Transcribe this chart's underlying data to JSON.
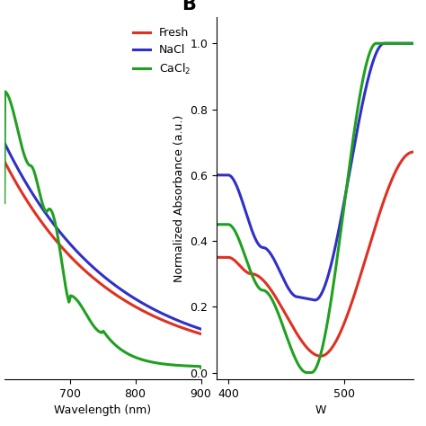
{
  "panel_B_label": "B",
  "ylabel_B": "Normalized Absorbance (a.u.)",
  "xlabel_A": "Wavelength (nm)",
  "xlabel_B": "W",
  "xlim_A": [
    600,
    900
  ],
  "xlim_B": [
    390,
    560
  ],
  "ylim_A": [
    -0.01,
    0.38
  ],
  "ylim_B": [
    -0.02,
    1.08
  ],
  "yticks_B": [
    0.0,
    0.2,
    0.4,
    0.6,
    0.8,
    1.0
  ],
  "xticks_A": [
    700,
    800,
    900
  ],
  "xticks_B": [
    400,
    500
  ],
  "colors": {
    "fresh": "#E03020",
    "nacl": "#3030C8",
    "cacl2": "#20A020"
  },
  "linewidth": 2.2,
  "background_color": "#ffffff",
  "legend_loc": "upper right",
  "legend_fontsize": 9
}
